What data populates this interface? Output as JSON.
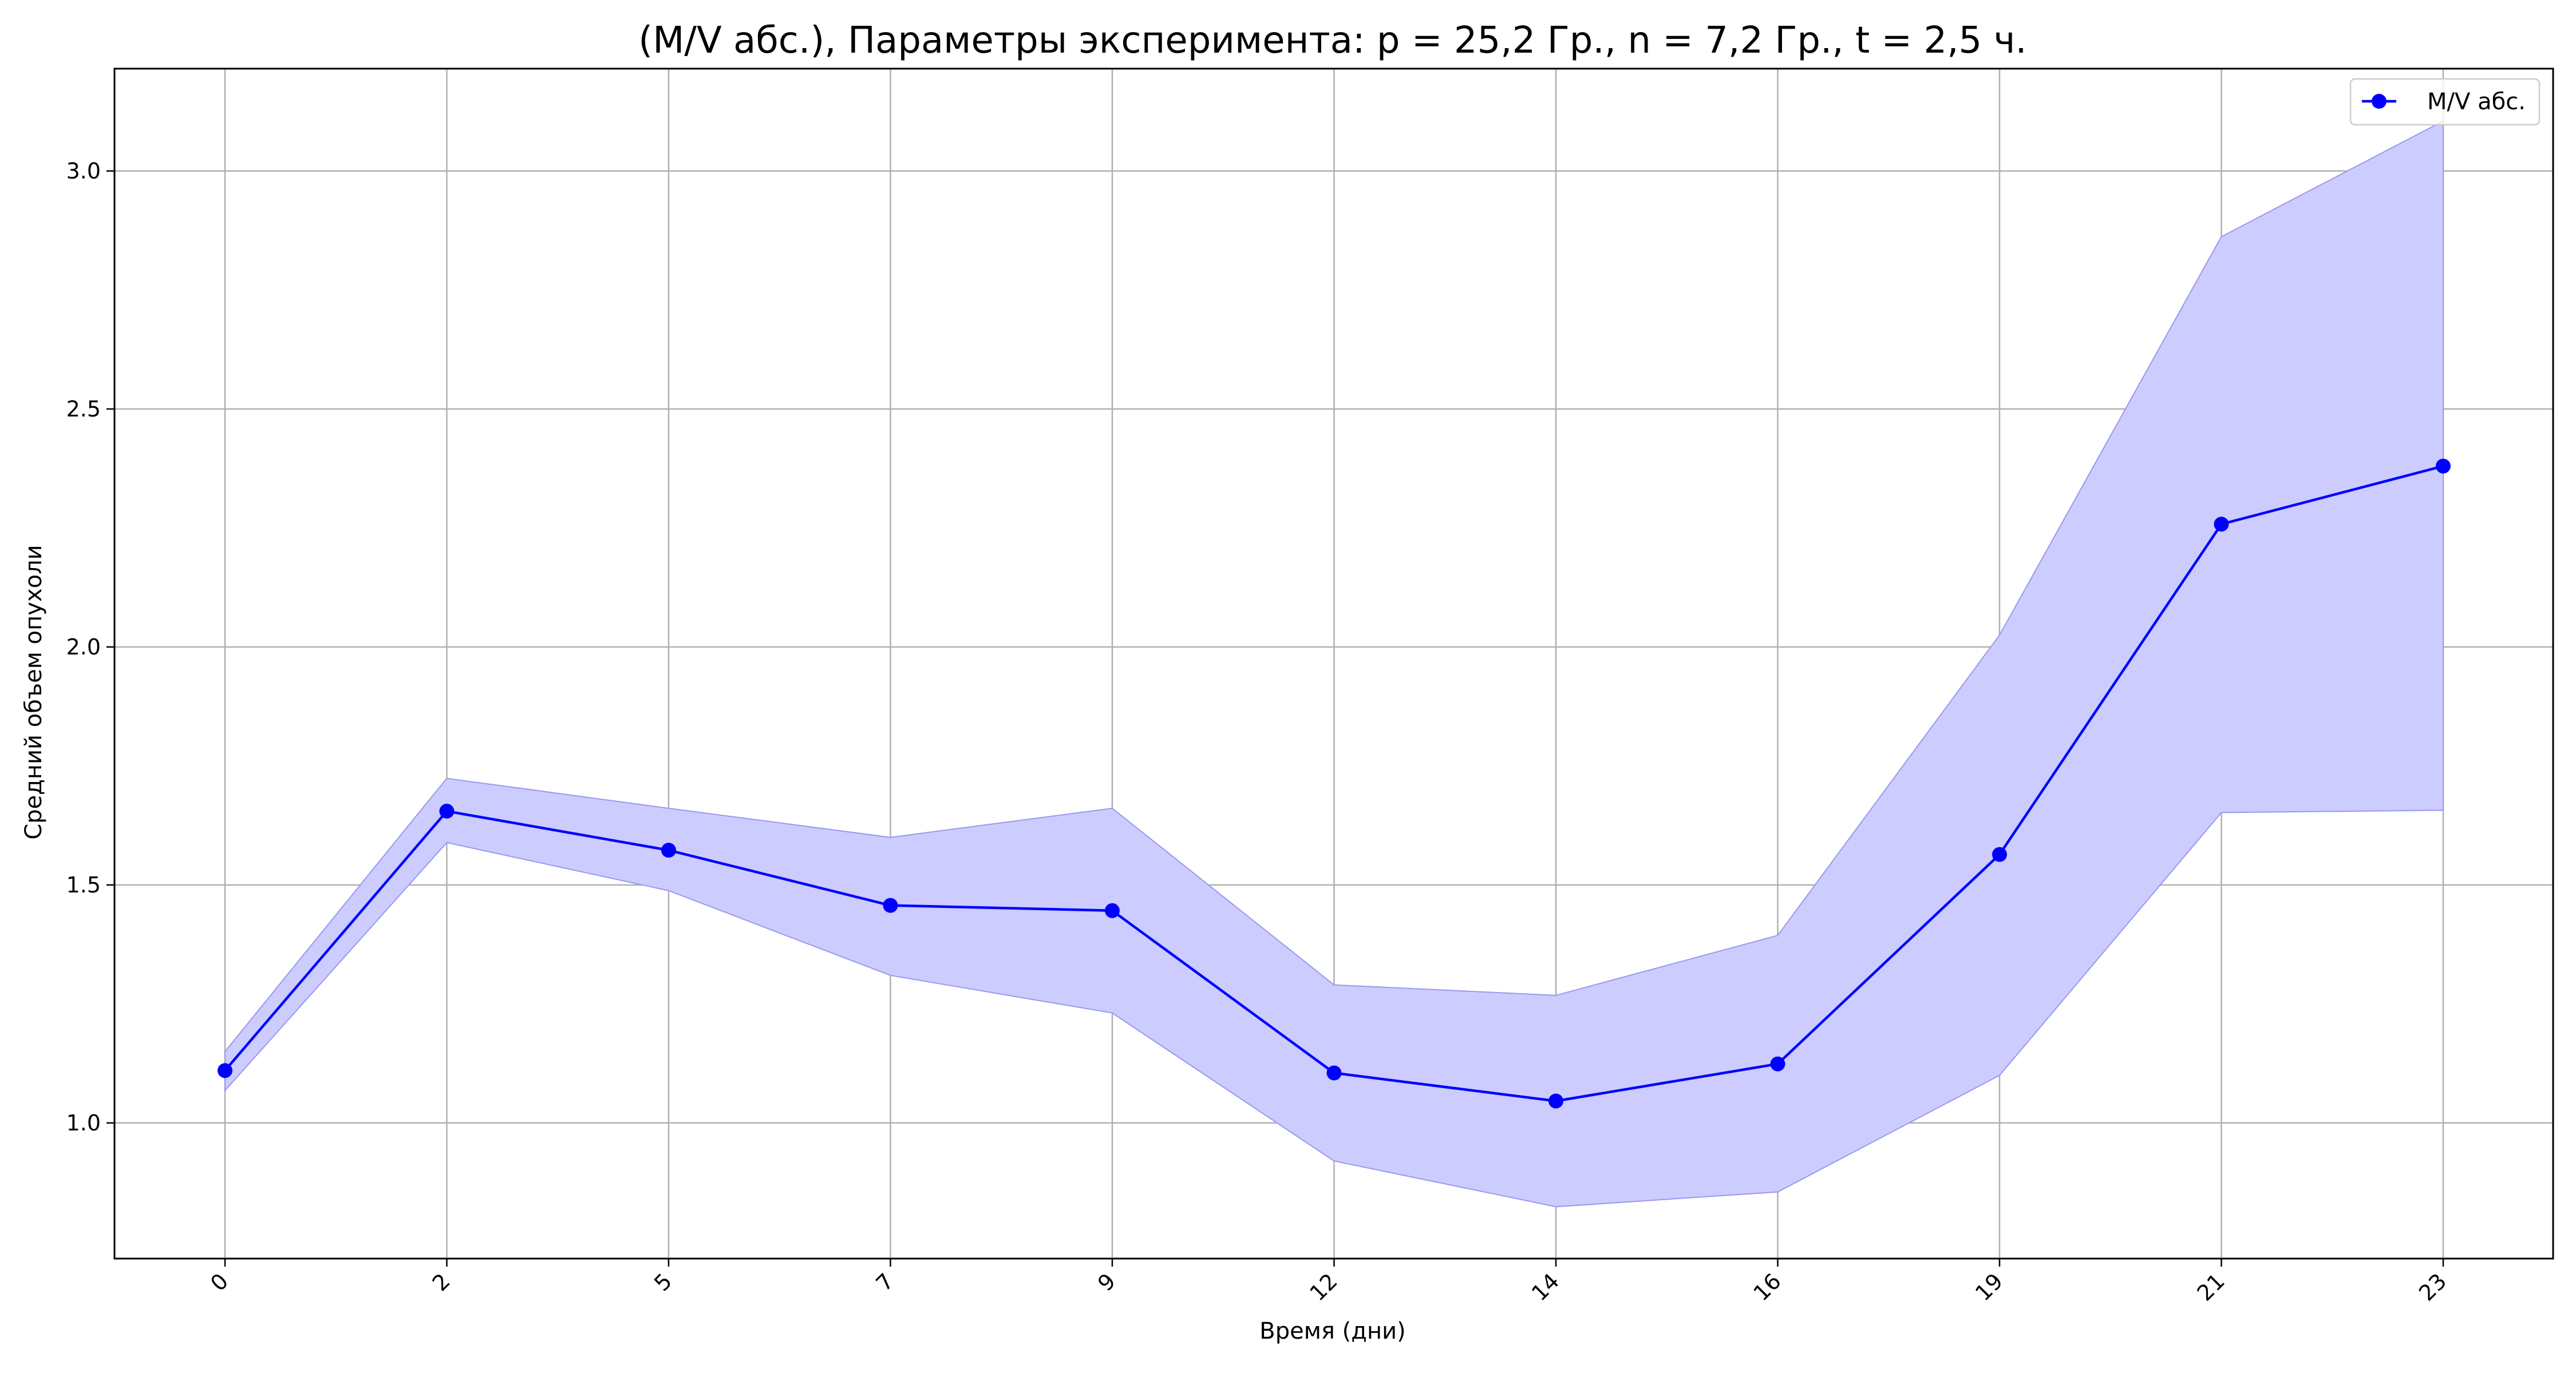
{
  "chart_data": {
    "type": "line",
    "title": "(M/V абс.), Параметры эксперимента: p = 25,2 Гр., n = 7,2 Гр., t = 2,5 ч.",
    "xlabel": "Время (дни)",
    "ylabel": "Средний объем опухоли",
    "categories": [
      "0",
      "2",
      "5",
      "7",
      "9",
      "12",
      "14",
      "16",
      "19",
      "21",
      "23"
    ],
    "x_scale": "categorical",
    "ylim": [
      0.715,
      3.215
    ],
    "y_ticks": [
      "1.0",
      "1.5",
      "2.0",
      "2.5",
      "3.0"
    ],
    "grid": true,
    "legend_position": "top-right",
    "series": [
      {
        "name": "M/V абс.",
        "color": "#0000ff",
        "marker": "circle",
        "values": [
          1.11,
          1.655,
          1.573,
          1.457,
          1.446,
          1.105,
          1.046,
          1.124,
          1.564,
          2.258,
          2.38
        ],
        "band_upper": [
          1.15,
          1.724,
          1.661,
          1.6,
          1.661,
          1.29,
          1.268,
          1.394,
          2.025,
          2.862,
          3.105
        ],
        "band_lower": [
          1.068,
          1.589,
          1.488,
          1.31,
          1.231,
          0.92,
          0.824,
          0.855,
          1.1,
          1.652,
          1.657
        ],
        "band_color": "#ccccff"
      }
    ]
  }
}
